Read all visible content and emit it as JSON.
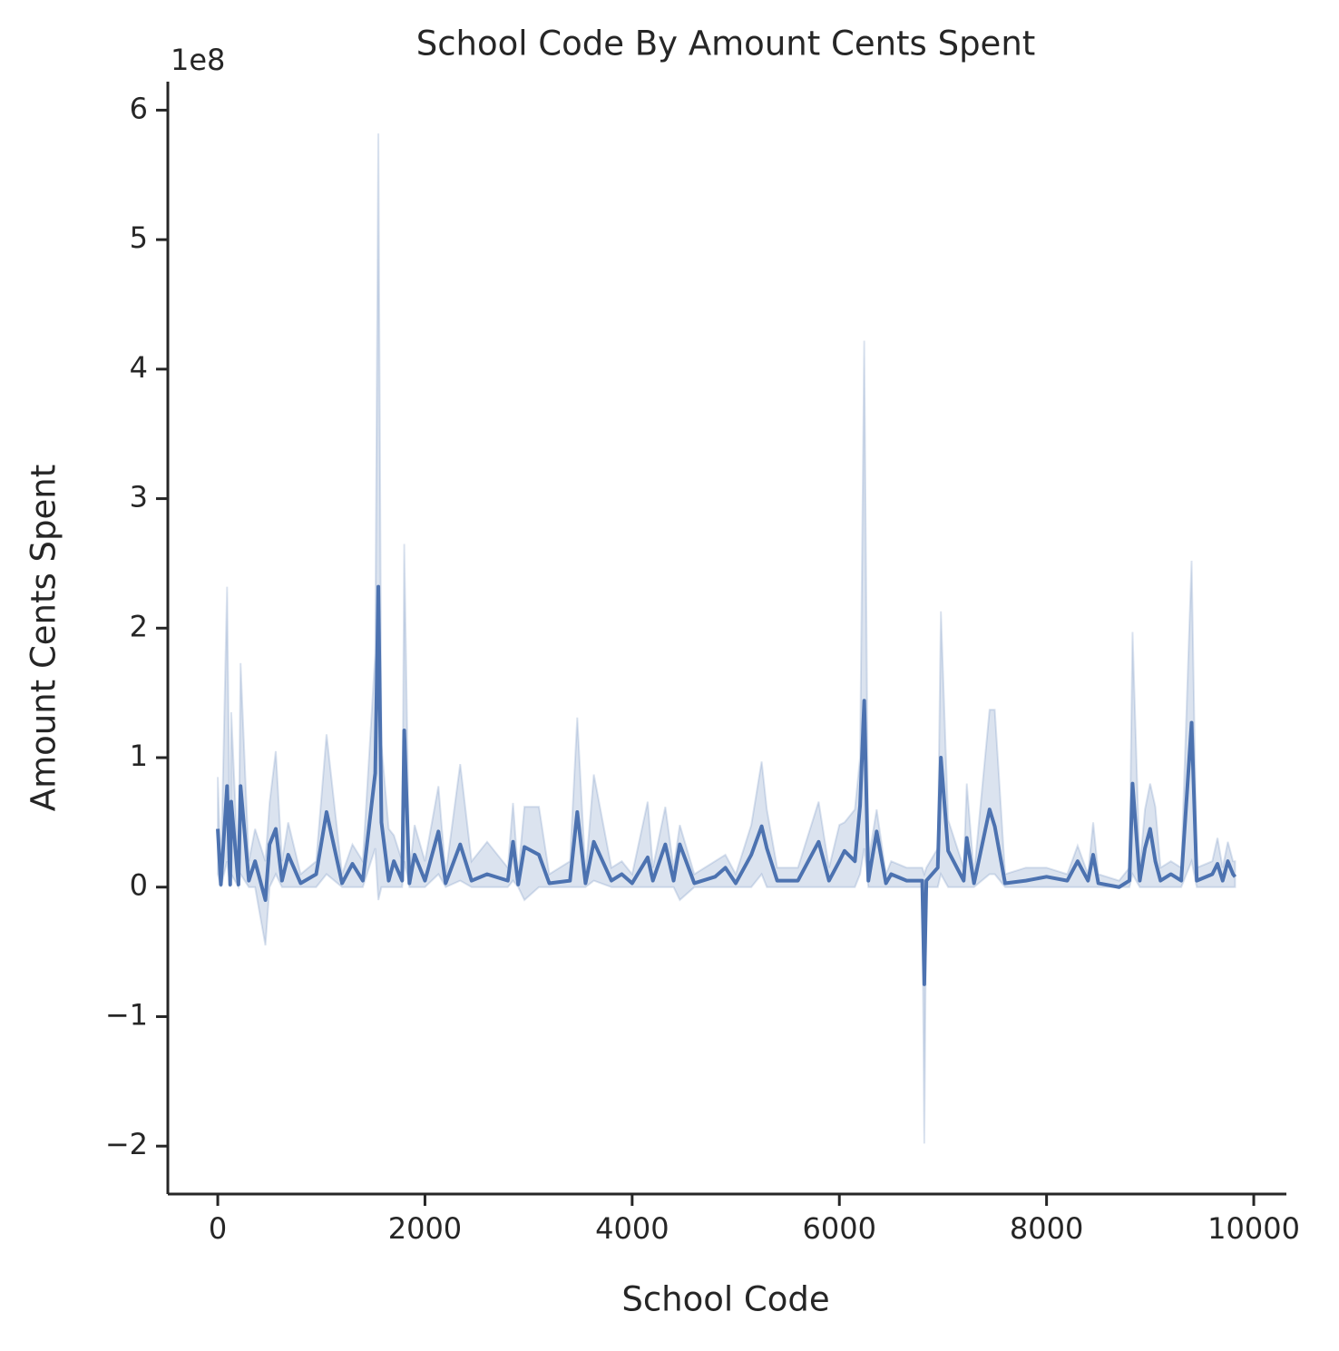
{
  "chart_data": {
    "type": "line",
    "title": "School Code By Amount Cents Spent",
    "x_label": "School Code",
    "y_label": "Amount Cents Spent",
    "y_offset_label": "1e8",
    "x": [
      0,
      30,
      90,
      120,
      130,
      200,
      220,
      300,
      360,
      460,
      500,
      560,
      620,
      680,
      800,
      950,
      1050,
      1200,
      1300,
      1400,
      1520,
      1550,
      1580,
      1650,
      1700,
      1780,
      1800,
      1850,
      1900,
      2000,
      2130,
      2200,
      2340,
      2450,
      2600,
      2800,
      2850,
      2900,
      2960,
      3100,
      3200,
      3400,
      3470,
      3550,
      3630,
      3800,
      3900,
      4000,
      4150,
      4200,
      4320,
      4400,
      4460,
      4600,
      4800,
      4900,
      5000,
      5150,
      5250,
      5300,
      5400,
      5600,
      5800,
      5900,
      6000,
      6050,
      6150,
      6200,
      6240,
      6280,
      6360,
      6450,
      6500,
      6650,
      6800,
      6820,
      6840,
      6950,
      6980,
      7050,
      7200,
      7230,
      7300,
      7450,
      7500,
      7600,
      7800,
      8000,
      8200,
      8300,
      8400,
      8450,
      8500,
      8700,
      8800,
      8830,
      8900,
      8950,
      9000,
      9050,
      9100,
      9200,
      9300,
      9400,
      9450,
      9600,
      9650,
      9700,
      9750,
      9800,
      9820
    ],
    "values": [
      0.45,
      0.02,
      0.78,
      0.02,
      0.66,
      0.02,
      0.78,
      0.05,
      0.2,
      -0.1,
      0.33,
      0.45,
      0.05,
      0.25,
      0.03,
      0.1,
      0.58,
      0.03,
      0.18,
      0.05,
      0.88,
      2.32,
      0.5,
      0.05,
      0.2,
      0.05,
      1.21,
      0.03,
      0.25,
      0.05,
      0.43,
      0.03,
      0.33,
      0.05,
      0.1,
      0.05,
      0.35,
      0.02,
      0.31,
      0.25,
      0.03,
      0.05,
      0.58,
      0.03,
      0.35,
      0.05,
      0.1,
      0.03,
      0.23,
      0.05,
      0.33,
      0.05,
      0.33,
      0.03,
      0.08,
      0.15,
      0.03,
      0.25,
      0.47,
      0.3,
      0.05,
      0.05,
      0.35,
      0.05,
      0.2,
      0.28,
      0.2,
      0.63,
      1.44,
      0.05,
      0.43,
      0.03,
      0.1,
      0.05,
      0.05,
      -0.75,
      0.05,
      0.15,
      1.0,
      0.28,
      0.05,
      0.38,
      0.03,
      0.6,
      0.47,
      0.03,
      0.05,
      0.08,
      0.05,
      0.2,
      0.05,
      0.25,
      0.03,
      0,
      0.05,
      0.8,
      0.05,
      0.3,
      0.45,
      0.2,
      0.05,
      0.1,
      0.05,
      1.27,
      0.05,
      0.1,
      0.18,
      0.05,
      0.2,
      0.1,
      0.08
    ],
    "lower": [
      0.1,
      0,
      0.2,
      0,
      0.1,
      0,
      0.1,
      0,
      0,
      -0.45,
      0,
      0.1,
      0,
      0,
      0,
      0,
      0.1,
      0,
      0,
      0,
      0.3,
      -0.1,
      0,
      0,
      0,
      0,
      0.2,
      0,
      0,
      0,
      0.1,
      0,
      0.05,
      0,
      0,
      0,
      0.05,
      0,
      -0.1,
      0,
      0,
      0,
      0,
      0,
      0.05,
      0,
      0,
      0,
      0,
      0,
      0,
      0,
      -0.1,
      0,
      0,
      0,
      0,
      0,
      0.1,
      0,
      0,
      0,
      0,
      0,
      0,
      0,
      0,
      0.1,
      0.3,
      0,
      0,
      0,
      0,
      0,
      0,
      -1.98,
      0,
      0,
      0.1,
      0,
      0,
      0,
      0,
      0.1,
      0.1,
      0,
      0,
      0,
      0,
      0,
      0,
      0,
      0,
      0,
      0,
      0.1,
      0,
      0,
      0,
      0,
      0,
      0,
      0,
      0.2,
      0,
      0,
      0,
      0,
      0,
      0,
      0
    ],
    "upper": [
      0.85,
      0.1,
      2.32,
      0.1,
      1.35,
      0.1,
      1.73,
      0.2,
      0.45,
      0.2,
      0.65,
      1.05,
      0.2,
      0.5,
      0.1,
      0.2,
      1.18,
      0.1,
      0.33,
      0.2,
      1.8,
      5.82,
      1.1,
      0.45,
      0.4,
      0.2,
      2.65,
      0.1,
      0.48,
      0.2,
      0.78,
      0.1,
      0.95,
      0.2,
      0.35,
      0.15,
      0.65,
      0.1,
      0.62,
      0.62,
      0.1,
      0.2,
      1.31,
      0.1,
      0.87,
      0.15,
      0.2,
      0.1,
      0.66,
      0.15,
      0.62,
      0.15,
      0.48,
      0.1,
      0.2,
      0.25,
      0.1,
      0.48,
      0.97,
      0.6,
      0.15,
      0.15,
      0.66,
      0.15,
      0.48,
      0.5,
      0.6,
      1.0,
      4.22,
      0.2,
      0.6,
      0.1,
      0.2,
      0.15,
      0.15,
      0.1,
      0.15,
      0.3,
      2.13,
      0.52,
      0.15,
      0.8,
      0.1,
      1.37,
      1.37,
      0.1,
      0.15,
      0.15,
      0.1,
      0.32,
      0.1,
      0.5,
      0.1,
      0.05,
      0.15,
      1.97,
      0.15,
      0.6,
      0.8,
      0.62,
      0.15,
      0.2,
      0.15,
      2.52,
      0.15,
      0.2,
      0.38,
      0.15,
      0.35,
      0.2,
      0.2
    ],
    "color": "#4c72b0",
    "xlim": [
      -482,
      10315
    ],
    "ylim": [
      -2.37,
      6.22
    ],
    "xticks": [
      0,
      2000,
      4000,
      6000,
      8000,
      10000
    ],
    "yticks": [
      {
        "value": -2,
        "label": "−2"
      },
      {
        "value": -1,
        "label": "−1"
      },
      0,
      1,
      2,
      3,
      4,
      5,
      6
    ],
    "grid": false
  }
}
